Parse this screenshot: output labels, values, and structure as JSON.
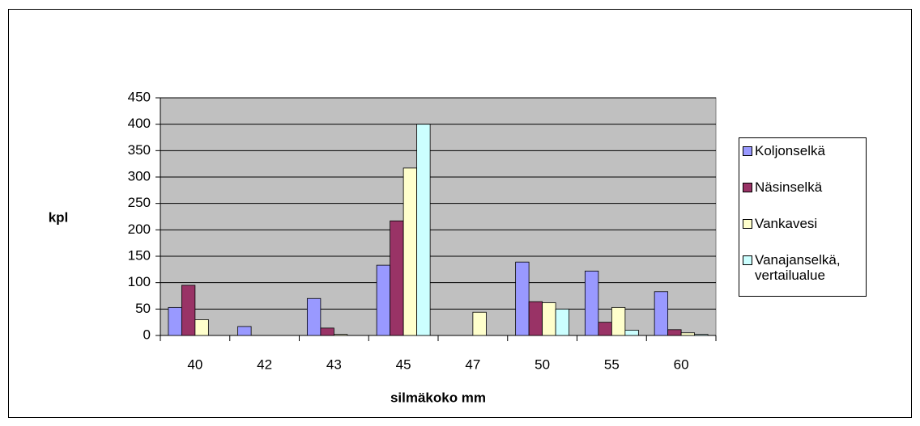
{
  "chart_data": {
    "type": "bar",
    "categories": [
      "40",
      "42",
      "43",
      "45",
      "47",
      "50",
      "55",
      "60"
    ],
    "x_label": "silmäkoko mm",
    "y_label": "kpl",
    "series": [
      {
        "name": "Koljonselkä",
        "color": "#9999ff",
        "values": [
          53,
          17,
          70,
          133,
          0,
          139,
          122,
          83
        ]
      },
      {
        "name": "Näsinselkä",
        "color": "#993366",
        "values": [
          95,
          0,
          14,
          217,
          0,
          64,
          25,
          11
        ]
      },
      {
        "name": "Vankavesi",
        "color": "#ffffcc",
        "values": [
          30,
          0,
          2,
          317,
          44,
          62,
          53,
          5
        ]
      },
      {
        "name": "Vanajanselkä, vertailualue",
        "color": "#ccffff",
        "values": [
          0,
          0,
          0,
          400,
          0,
          50,
          10,
          2
        ]
      }
    ],
    "ylim": [
      0,
      450
    ],
    "yticks": [
      0,
      50,
      100,
      150,
      200,
      250,
      300,
      350,
      400,
      450
    ],
    "grid": true,
    "legend": "right"
  }
}
